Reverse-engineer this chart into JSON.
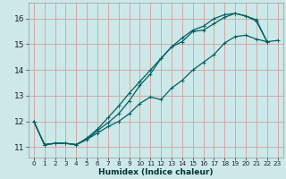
{
  "xlabel": "Humidex (Indice chaleur)",
  "bg_color": "#cce8e8",
  "grid_color": "#d4a0a0",
  "line_color": "#006060",
  "xlim": [
    -0.5,
    23.5
  ],
  "ylim": [
    10.6,
    16.6
  ],
  "xticks": [
    0,
    1,
    2,
    3,
    4,
    5,
    6,
    7,
    8,
    9,
    10,
    11,
    12,
    13,
    14,
    15,
    16,
    17,
    18,
    19,
    20,
    21,
    22,
    23
  ],
  "yticks": [
    11,
    12,
    13,
    14,
    15,
    16
  ],
  "line1_x": [
    0,
    1,
    2,
    3,
    4,
    5,
    6,
    7,
    8,
    9,
    10,
    11,
    12,
    13,
    14,
    15,
    16,
    17,
    18,
    19,
    20,
    21,
    22,
    23
  ],
  "line1_y": [
    12.0,
    11.1,
    11.15,
    11.15,
    11.1,
    11.3,
    11.55,
    11.8,
    12.0,
    12.3,
    12.7,
    12.95,
    12.85,
    13.3,
    13.6,
    14.0,
    14.3,
    14.6,
    15.05,
    15.3,
    15.35,
    15.2,
    15.1,
    15.15
  ],
  "line2_x": [
    0,
    1,
    2,
    3,
    4,
    5,
    6,
    7,
    8,
    9,
    10,
    11,
    12,
    13,
    14,
    15,
    16,
    17,
    18,
    19,
    20,
    21,
    22,
    23
  ],
  "line2_y": [
    12.0,
    11.1,
    11.15,
    11.15,
    11.1,
    11.3,
    11.65,
    11.95,
    12.3,
    12.8,
    13.4,
    13.85,
    14.45,
    14.9,
    15.1,
    15.5,
    15.55,
    15.8,
    16.05,
    16.2,
    16.1,
    15.9,
    15.1,
    null
  ],
  "line3_x": [
    0,
    1,
    2,
    3,
    4,
    5,
    6,
    7,
    8,
    9,
    10,
    11,
    12,
    13,
    14,
    15,
    16,
    17,
    18,
    19,
    20,
    21,
    22,
    23
  ],
  "line3_y": [
    12.0,
    11.1,
    11.15,
    11.15,
    11.1,
    11.35,
    11.7,
    12.15,
    12.6,
    13.1,
    13.55,
    14.0,
    14.45,
    14.9,
    15.25,
    15.55,
    15.7,
    16.0,
    16.15,
    16.2,
    16.1,
    15.95,
    15.1,
    null
  ]
}
